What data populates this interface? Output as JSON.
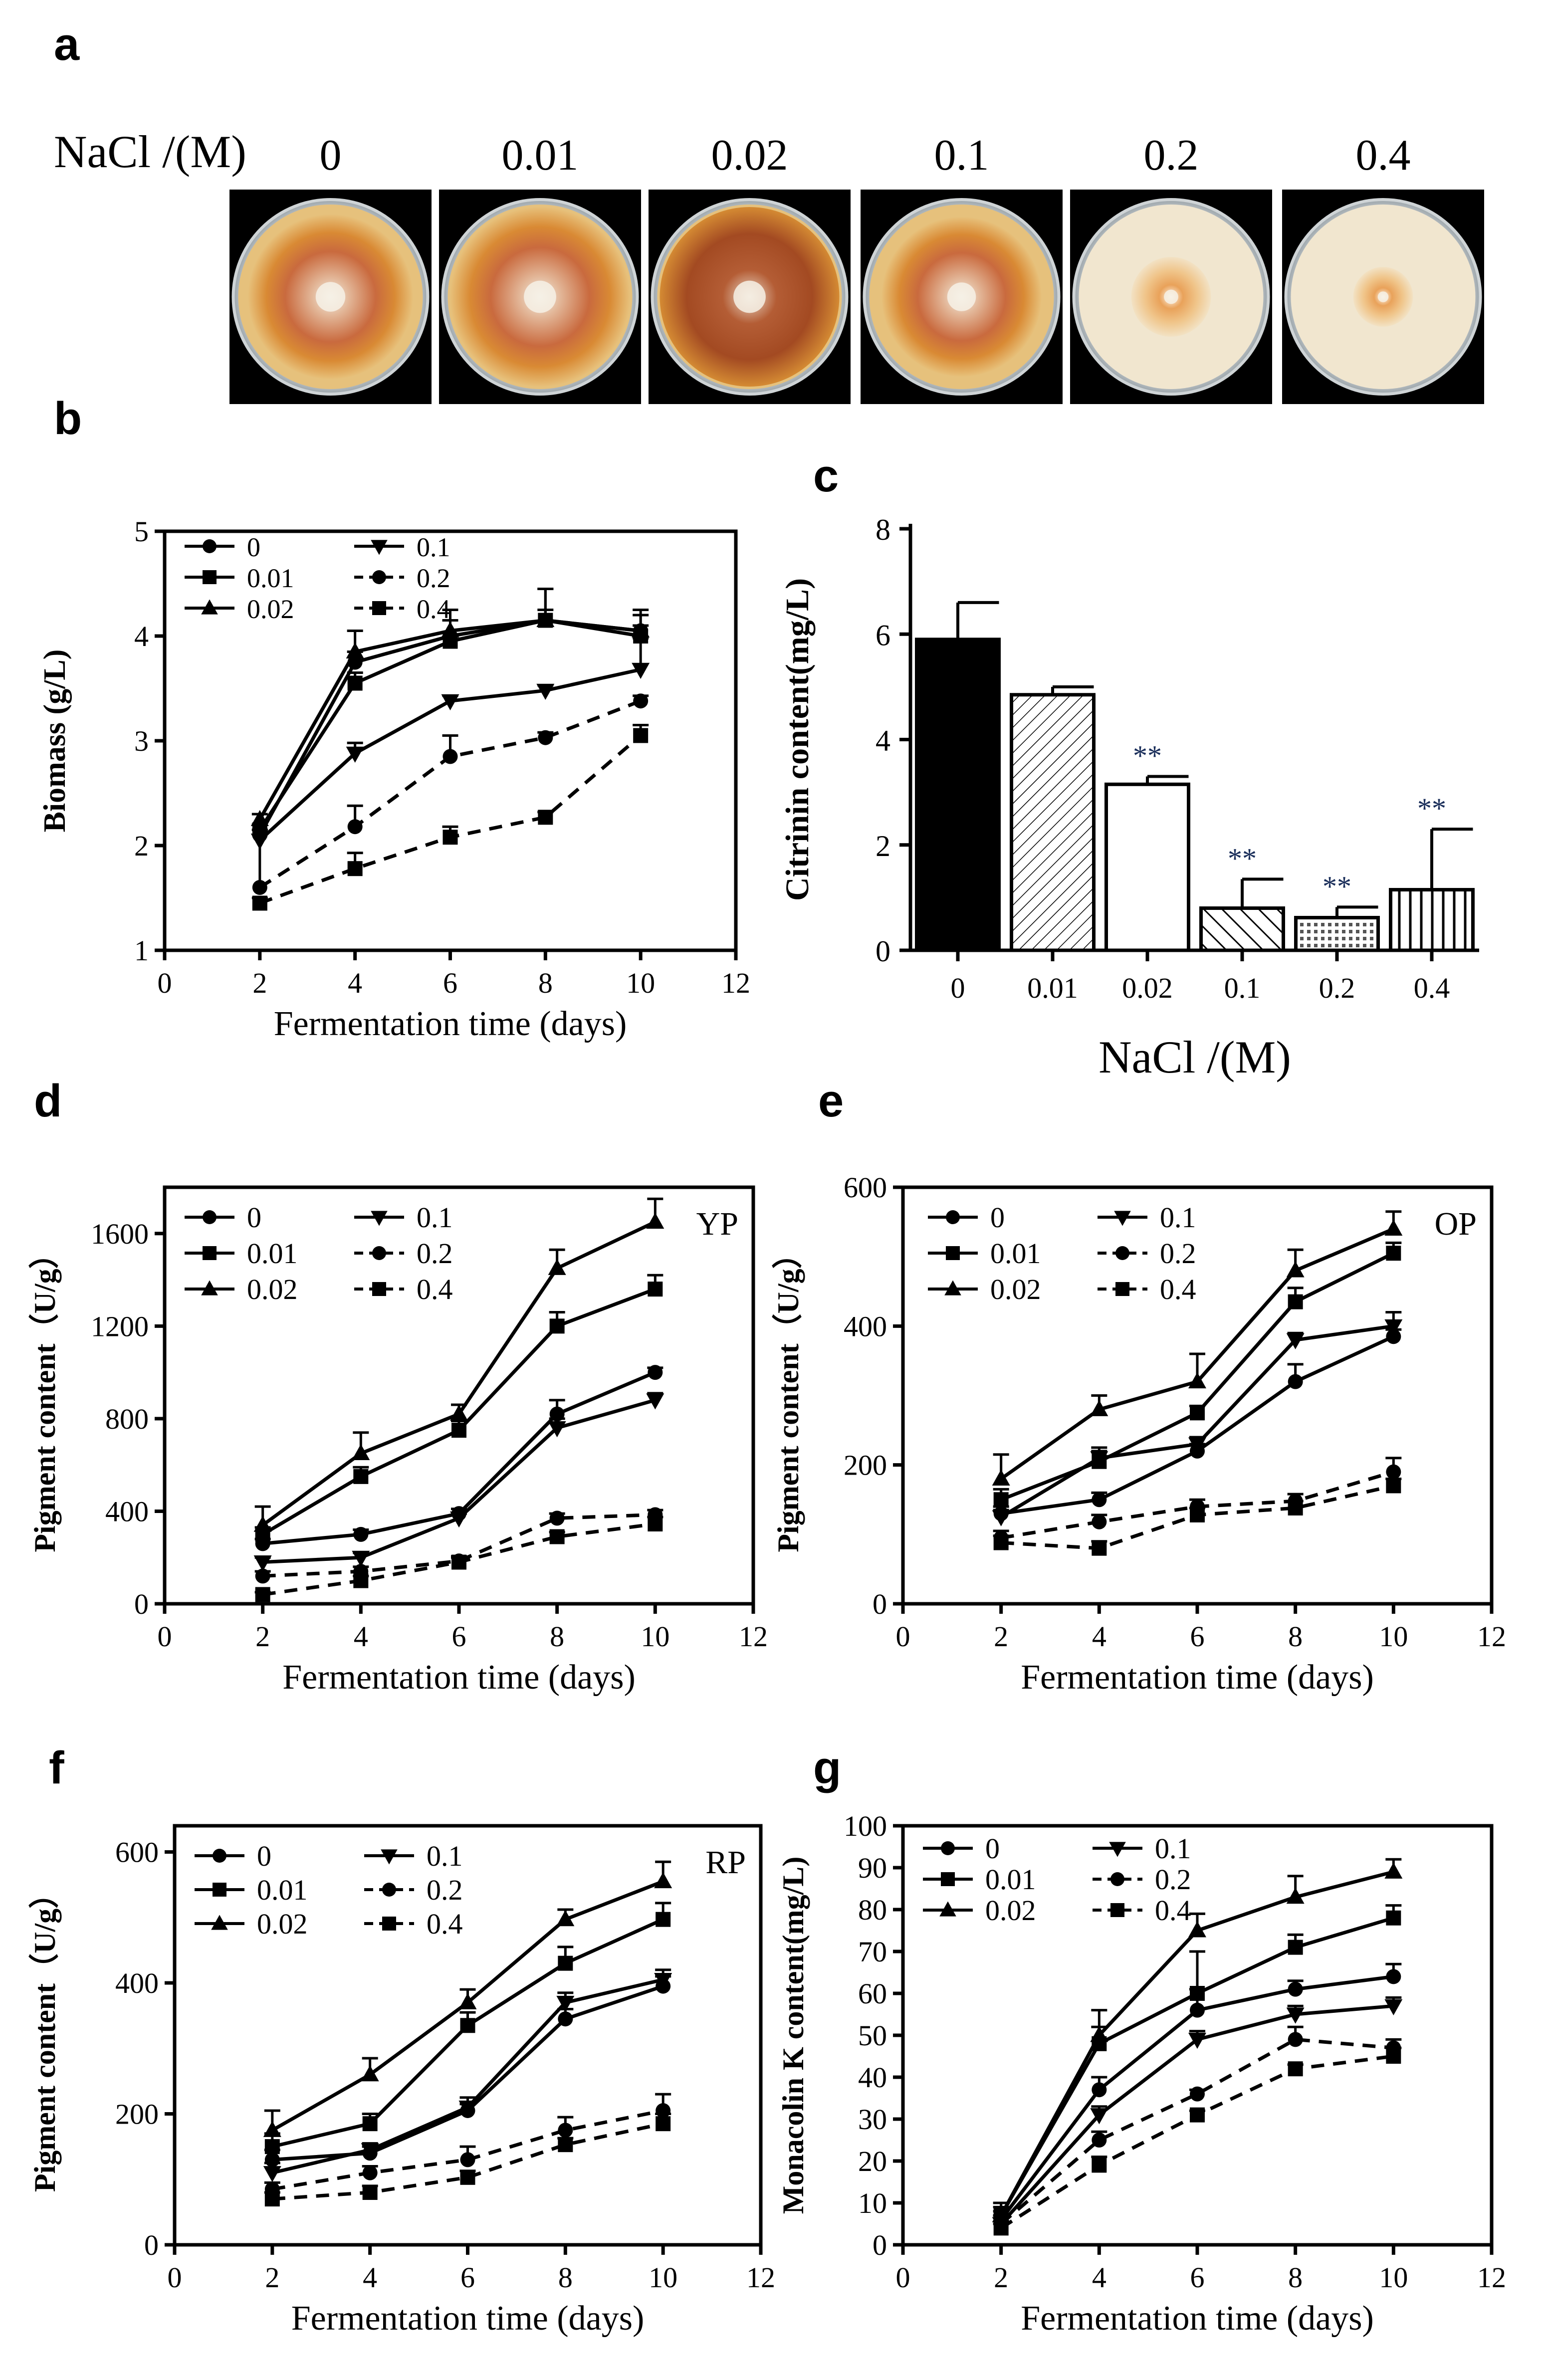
{
  "panel_labels": {
    "a": "a",
    "b": "b",
    "c": "c",
    "d": "d",
    "e": "e",
    "f": "f",
    "g": "g"
  },
  "panel_a": {
    "row_label": "NaCl /(M)",
    "plates": [
      {
        "label": "0",
        "description": "large orange colony with white center"
      },
      {
        "label": "0.01",
        "description": "large orange colony with white center"
      },
      {
        "label": "0.02",
        "description": "large dark orange colony"
      },
      {
        "label": "0.1",
        "description": "orange colony"
      },
      {
        "label": "0.2",
        "description": "small colony, pale orange halo"
      },
      {
        "label": "0.4",
        "description": "smallest colony, pale halo"
      }
    ]
  },
  "series_names": [
    "0",
    "0.01",
    "0.02",
    "0.1",
    "0.2",
    "0.4"
  ],
  "chart_data": [
    {
      "id": "b",
      "type": "line",
      "title": "",
      "xlabel": "Fermentation time (days)",
      "ylabel": "Biomass (g/L)",
      "xlim": [
        0,
        12
      ],
      "ylim": [
        1,
        5
      ],
      "xticks": [
        0,
        2,
        4,
        6,
        8,
        10,
        12
      ],
      "yticks": [
        1,
        2,
        3,
        4,
        5
      ],
      "x": [
        2,
        4,
        6,
        8,
        10
      ],
      "series": [
        {
          "name": "0",
          "values": [
            2.1,
            3.75,
            4.0,
            4.15,
            4.05
          ],
          "err": [
            0.05,
            0.1,
            0.15,
            0.1,
            0.2
          ]
        },
        {
          "name": "0.01",
          "values": [
            2.15,
            3.55,
            3.95,
            4.15,
            4.0
          ],
          "err": [
            0.05,
            0.1,
            0.2,
            0.3,
            0.1
          ]
        },
        {
          "name": "0.02",
          "values": [
            2.25,
            3.85,
            4.05,
            4.15,
            4.05
          ],
          "err": [
            0.05,
            0.2,
            0.2,
            0.3,
            0.15
          ]
        },
        {
          "name": "0.1",
          "values": [
            2.05,
            2.88,
            3.38,
            3.48,
            3.68
          ],
          "err": [
            0.1,
            0.1,
            0.05,
            0.05,
            0.3
          ]
        },
        {
          "name": "0.2",
          "values": [
            1.6,
            2.18,
            2.85,
            3.03,
            3.38
          ],
          "err": [
            0.6,
            0.2,
            0.2,
            0.05,
            0.05
          ]
        },
        {
          "name": "0.4",
          "values": [
            1.45,
            1.78,
            2.08,
            2.27,
            3.05
          ],
          "err": [
            0.05,
            0.15,
            0.1,
            0.05,
            0.1
          ]
        }
      ]
    },
    {
      "id": "c",
      "type": "bar",
      "title": "",
      "xlabel": "NaCl /(M)",
      "ylabel": "Citrinin content(mg/L)",
      "categories": [
        "0",
        "0.01",
        "0.02",
        "0.1",
        "0.2",
        "0.4"
      ],
      "values": [
        5.9,
        4.85,
        3.15,
        0.8,
        0.62,
        1.15
      ],
      "err": [
        0.7,
        0.15,
        0.15,
        0.55,
        0.2,
        1.15
      ],
      "annotations": [
        "",
        "",
        "**",
        "**",
        "**",
        "**"
      ],
      "ylim": [
        0,
        8
      ],
      "yticks": [
        0,
        2,
        4,
        6,
        8
      ]
    },
    {
      "id": "d",
      "type": "line",
      "title": "YP",
      "xlabel": "Fermentation time (days)",
      "ylabel": "Pigment content（U/g）",
      "xlim": [
        0,
        12
      ],
      "ylim": [
        0,
        1800
      ],
      "xticks": [
        0,
        2,
        4,
        6,
        8,
        10,
        12
      ],
      "yticks": [
        0,
        400,
        800,
        1200,
        1600
      ],
      "x": [
        2,
        4,
        6,
        8,
        10
      ],
      "series": [
        {
          "name": "0",
          "values": [
            260,
            300,
            390,
            820,
            1000
          ],
          "err": [
            20,
            20,
            20,
            60,
            20
          ]
        },
        {
          "name": "0.01",
          "values": [
            300,
            550,
            750,
            1200,
            1360
          ],
          "err": [
            30,
            40,
            40,
            60,
            60
          ]
        },
        {
          "name": "0.02",
          "values": [
            340,
            650,
            820,
            1450,
            1650
          ],
          "err": [
            80,
            90,
            40,
            80,
            100
          ]
        },
        {
          "name": "0.1",
          "values": [
            180,
            200,
            370,
            760,
            880
          ],
          "err": [
            20,
            20,
            20,
            40,
            30
          ]
        },
        {
          "name": "0.2",
          "values": [
            120,
            140,
            185,
            370,
            385
          ],
          "err": [
            20,
            20,
            20,
            20,
            20
          ]
        },
        {
          "name": "0.4",
          "values": [
            40,
            100,
            180,
            290,
            345
          ],
          "err": [
            10,
            20,
            20,
            20,
            30
          ]
        }
      ]
    },
    {
      "id": "e",
      "type": "line",
      "title": "OP",
      "xlabel": "Fermentation time (days)",
      "ylabel": "Pigment content（U/g）",
      "xlim": [
        0,
        12
      ],
      "ylim": [
        0,
        600
      ],
      "xticks": [
        0,
        2,
        4,
        6,
        8,
        10,
        12
      ],
      "yticks": [
        0,
        200,
        400,
        600
      ],
      "x": [
        2,
        4,
        6,
        8,
        10
      ],
      "series": [
        {
          "name": "0",
          "values": [
            130,
            150,
            220,
            320,
            385
          ],
          "err": [
            10,
            10,
            10,
            25,
            10
          ]
        },
        {
          "name": "0.01",
          "values": [
            150,
            205,
            275,
            435,
            505
          ],
          "err": [
            15,
            15,
            10,
            20,
            15
          ]
        },
        {
          "name": "0.02",
          "values": [
            180,
            280,
            320,
            480,
            540
          ],
          "err": [
            35,
            20,
            40,
            30,
            25
          ]
        },
        {
          "name": "0.1",
          "values": [
            125,
            210,
            230,
            380,
            400
          ],
          "err": [
            10,
            15,
            10,
            10,
            20
          ]
        },
        {
          "name": "0.2",
          "values": [
            95,
            118,
            140,
            148,
            190
          ],
          "err": [
            10,
            10,
            10,
            10,
            20
          ]
        },
        {
          "name": "0.4",
          "values": [
            88,
            80,
            128,
            138,
            170
          ],
          "err": [
            10,
            10,
            10,
            10,
            10
          ]
        }
      ]
    },
    {
      "id": "f",
      "type": "line",
      "title": "RP",
      "xlabel": "Fermentation time (days)",
      "ylabel": "Pigment content（U/g）",
      "xlim": [
        0,
        12
      ],
      "ylim": [
        0,
        640
      ],
      "xticks": [
        0,
        2,
        4,
        6,
        8,
        10,
        12
      ],
      "yticks": [
        0,
        200,
        400,
        600
      ],
      "x": [
        2,
        4,
        6,
        8,
        10
      ],
      "series": [
        {
          "name": "0",
          "values": [
            130,
            140,
            205,
            345,
            395
          ],
          "err": [
            15,
            10,
            10,
            15,
            15
          ]
        },
        {
          "name": "0.01",
          "values": [
            150,
            185,
            335,
            430,
            497
          ],
          "err": [
            20,
            15,
            20,
            25,
            25
          ]
        },
        {
          "name": "0.02",
          "values": [
            175,
            260,
            370,
            497,
            555
          ],
          "err": [
            30,
            25,
            20,
            15,
            30
          ]
        },
        {
          "name": "0.1",
          "values": [
            110,
            145,
            210,
            370,
            405
          ],
          "err": [
            15,
            10,
            15,
            15,
            15
          ]
        },
        {
          "name": "0.2",
          "values": [
            85,
            110,
            130,
            175,
            205
          ],
          "err": [
            10,
            10,
            20,
            20,
            25
          ]
        },
        {
          "name": "0.4",
          "values": [
            70,
            80,
            103,
            153,
            185
          ],
          "err": [
            10,
            10,
            10,
            10,
            15
          ]
        }
      ]
    },
    {
      "id": "g",
      "type": "line",
      "title": "",
      "xlabel": "Fermentation time (days)",
      "ylabel": "Monacolin K content(mg/L)",
      "xlim": [
        0,
        12
      ],
      "ylim": [
        0,
        100
      ],
      "xticks": [
        0,
        2,
        4,
        6,
        8,
        10,
        12
      ],
      "yticks": [
        0,
        10,
        20,
        30,
        40,
        50,
        60,
        70,
        80,
        90,
        100
      ],
      "x": [
        2,
        4,
        6,
        8,
        10
      ],
      "series": [
        {
          "name": "0",
          "values": [
            6,
            37,
            56,
            61,
            64
          ],
          "err": [
            2,
            3,
            5,
            2,
            3
          ]
        },
        {
          "name": "0.01",
          "values": [
            7,
            48,
            60,
            71,
            78
          ],
          "err": [
            2,
            4,
            10,
            3,
            3
          ]
        },
        {
          "name": "0.02",
          "values": [
            7,
            50,
            75,
            83,
            89
          ],
          "err": [
            3,
            6,
            4,
            5,
            3
          ]
        },
        {
          "name": "0.1",
          "values": [
            5,
            31,
            49,
            55,
            57
          ],
          "err": [
            2,
            2,
            2,
            2,
            2
          ]
        },
        {
          "name": "0.2",
          "values": [
            5,
            25,
            36,
            49,
            47
          ],
          "err": [
            2,
            2,
            1,
            3,
            2
          ]
        },
        {
          "name": "0.4",
          "values": [
            4,
            19,
            31,
            42,
            45
          ],
          "err": [
            1,
            2,
            1,
            1,
            2
          ]
        }
      ]
    }
  ]
}
